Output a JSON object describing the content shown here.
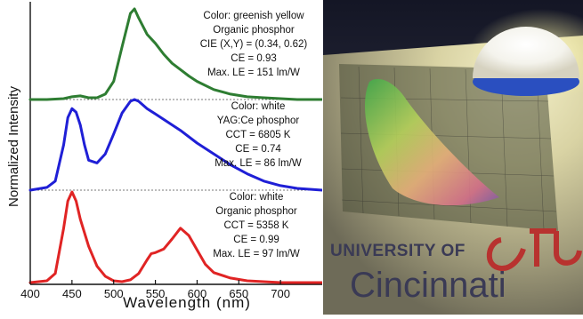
{
  "chart_data": {
    "type": "line",
    "xlabel": "Wavelength (nm)",
    "ylabel": "Normalized Intensity",
    "xlim": [
      400,
      750
    ],
    "xticks": [
      400,
      450,
      500,
      550,
      600,
      650,
      700
    ],
    "xtick_labels": [
      "400",
      "450",
      "500",
      "550",
      "600",
      "650",
      "700"
    ],
    "grid": false,
    "layout": "three vertically stacked panels sharing the wavelength axis",
    "series": [
      {
        "color": "#2e7d32",
        "panel": 0,
        "x": [
          400,
          420,
          440,
          450,
          460,
          470,
          480,
          490,
          500,
          510,
          520,
          525,
          530,
          540,
          550,
          560,
          570,
          580,
          590,
          600,
          620,
          640,
          660,
          680,
          700,
          720,
          750
        ],
        "y": [
          0,
          0,
          0.01,
          0.03,
          0.04,
          0.02,
          0.02,
          0.06,
          0.2,
          0.58,
          0.95,
          1.0,
          0.9,
          0.72,
          0.62,
          0.5,
          0.4,
          0.33,
          0.26,
          0.2,
          0.11,
          0.06,
          0.03,
          0.02,
          0.01,
          0,
          0
        ],
        "annotation": [
          "Color:  greenish yellow",
          "Organic  phosphor",
          "CIE (X,Y) = (0.34, 0.62)",
          "CE = 0.93",
          "Max. LE = 151 lm/W"
        ]
      },
      {
        "color": "#1f1fd6",
        "panel": 1,
        "x": [
          400,
          420,
          430,
          440,
          445,
          450,
          455,
          460,
          465,
          470,
          480,
          490,
          500,
          510,
          520,
          525,
          530,
          540,
          550,
          560,
          580,
          600,
          620,
          640,
          660,
          680,
          700,
          720,
          750
        ],
        "y": [
          0,
          0.03,
          0.1,
          0.5,
          0.8,
          0.9,
          0.86,
          0.72,
          0.5,
          0.33,
          0.3,
          0.4,
          0.62,
          0.85,
          0.98,
          1.0,
          0.98,
          0.9,
          0.84,
          0.78,
          0.66,
          0.52,
          0.4,
          0.28,
          0.18,
          0.1,
          0.05,
          0.02,
          0
        ]
      },
      {
        "color": "#e02424",
        "panel": 2,
        "x": [
          400,
          420,
          430,
          440,
          445,
          450,
          455,
          460,
          470,
          480,
          490,
          500,
          510,
          520,
          530,
          540,
          545,
          550,
          560,
          570,
          580,
          590,
          600,
          610,
          620,
          640,
          660,
          680,
          700,
          750
        ],
        "y": [
          0,
          0.02,
          0.1,
          0.6,
          0.9,
          1.0,
          0.9,
          0.7,
          0.4,
          0.18,
          0.07,
          0.02,
          0.01,
          0.03,
          0.1,
          0.25,
          0.32,
          0.33,
          0.37,
          0.48,
          0.6,
          0.52,
          0.36,
          0.2,
          0.11,
          0.05,
          0.02,
          0.01,
          0,
          0
        ]
      }
    ],
    "annotations": [
      {
        "lines": [
          "Color:  greenish yellow",
          "Organic  phosphor",
          "CIE (X,Y) = (0.34, 0.62)",
          "CE = 0.93",
          "Max. LE = 151 lm/W"
        ]
      },
      {
        "lines": [
          "Color:  white",
          "YAG:Ce phosphor",
          "CCT = 6805 K",
          "CE = 0.74",
          "Max. LE = 86 lm/W"
        ]
      },
      {
        "lines": [
          "Color:  white",
          "Organic phosphor",
          "CCT = 5358 K",
          "CE = 0.99",
          "Max. LE = 97 lm/W"
        ]
      }
    ]
  },
  "photo": {
    "text_line1": "UNIVERSITY OF",
    "text_line2": "Cincinnati",
    "colors": {
      "accent": "#b8322f",
      "text": "#3a3a55"
    }
  }
}
